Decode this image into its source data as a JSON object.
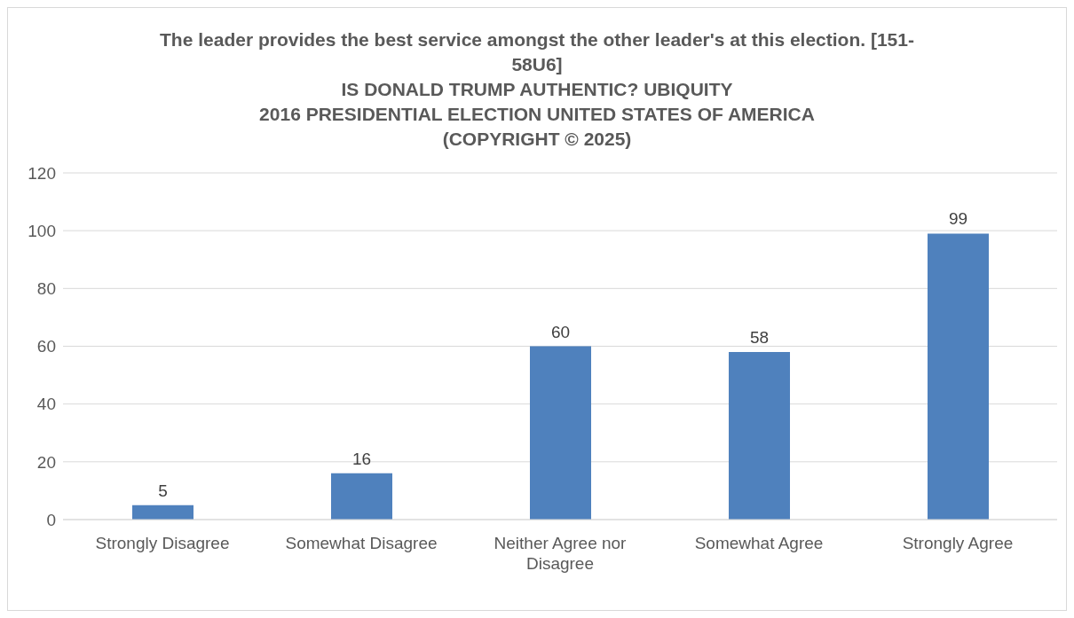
{
  "chart_data": {
    "type": "bar",
    "title": "The leader provides the best service amongst the other leader's at this election. [151-58U6]\nIS DONALD TRUMP AUTHENTIC? UBIQUITY\n2016 PRESIDENTIAL ELECTION UNITED STATES OF AMERICA\n(COPYRIGHT © 2025)",
    "categories": [
      "Strongly Disagree",
      "Somewhat Disagree",
      "Neither Agree nor Disagree",
      "Somewhat Agree",
      "Strongly Agree"
    ],
    "values": [
      5,
      16,
      60,
      58,
      99
    ],
    "color": "#4f81bd",
    "ylim": [
      0,
      120
    ],
    "yticks": [
      0,
      20,
      40,
      60,
      80,
      100,
      120
    ],
    "grid": "y",
    "data_labels": true
  }
}
